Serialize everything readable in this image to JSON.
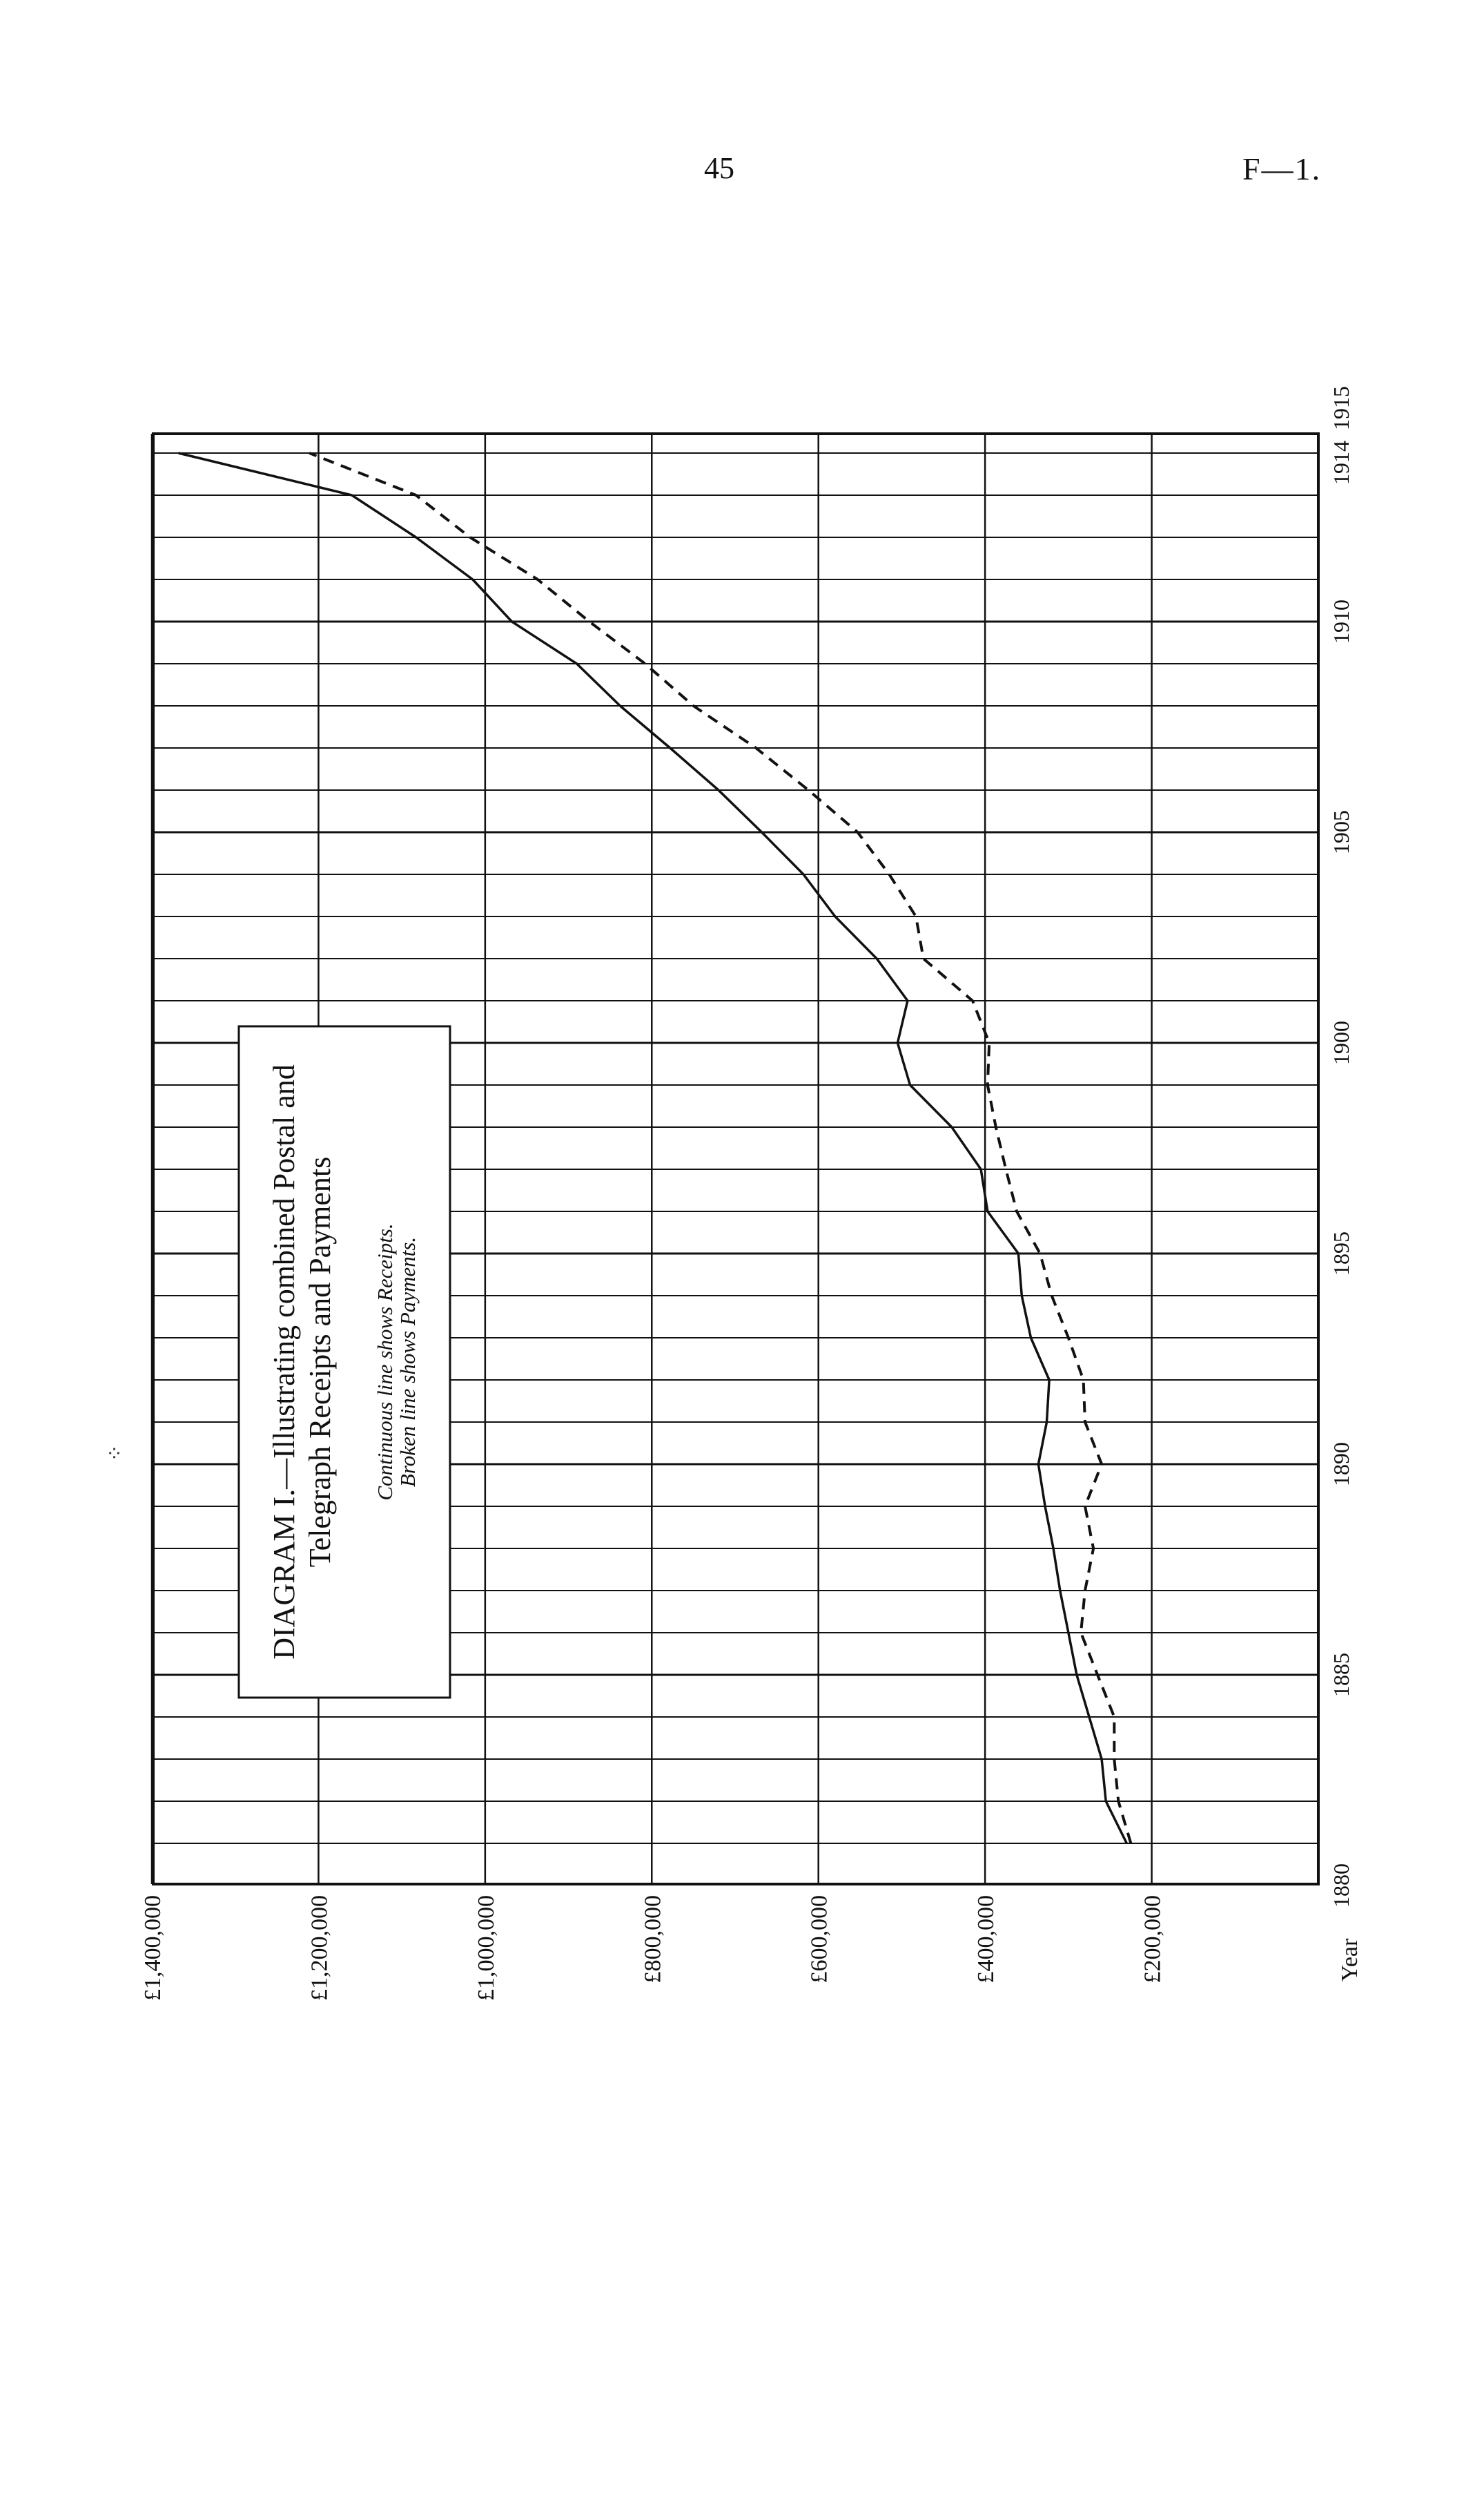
{
  "page": {
    "page_number": "45",
    "doc_ref": "F—1."
  },
  "chart_data": {
    "type": "line",
    "orientation": "rotated 90° (years run along the long axis, money along the short axis)",
    "title": "Diagram I.—Illustrating combined Postal and Telegraph Receipts and Payments",
    "title_lines": [
      "DIAGRAM I.—Illustrating combined Postal and",
      "Telegraph Receipts and Payments"
    ],
    "legend": [
      "Continuous line shows Receipts.",
      "Broken line shows Payments."
    ],
    "legend_placement": "inset box, upper-middle of plot",
    "xlabel": "Year",
    "x_ticks": [
      1880,
      1885,
      1890,
      1895,
      1900,
      1905,
      1910,
      1914,
      1915
    ],
    "x_tick_labels": [
      "1880",
      "1885",
      "1890",
      "1895",
      "1900",
      "1905",
      "1910",
      "1914",
      "1915"
    ],
    "xlim": [
      1880,
      1915
    ],
    "y_ticks": [
      200000,
      400000,
      600000,
      800000,
      1000000,
      1200000,
      1400000
    ],
    "y_tick_labels": [
      "£200,000",
      "£400,000",
      "£600,000",
      "£800,000",
      "£1,000,000",
      "£1,200,000",
      "£1,400,000"
    ],
    "ylim": [
      0,
      1400000
    ],
    "grid": true,
    "series": [
      {
        "name": "Receipts",
        "style": "solid",
        "x": [
          1881,
          1882,
          1883,
          1884,
          1885,
          1886,
          1887,
          1888,
          1889,
          1890,
          1891,
          1892,
          1893,
          1894,
          1895,
          1896,
          1897,
          1898,
          1899,
          1900,
          1901,
          1902,
          1903,
          1904,
          1905,
          1906,
          1907,
          1908,
          1909,
          1910,
          1911,
          1912,
          1913,
          1914
        ],
        "values": [
          230000,
          255000,
          260000,
          275000,
          290000,
          300000,
          310000,
          318000,
          328000,
          336000,
          326000,
          323000,
          345000,
          356000,
          360000,
          397000,
          405000,
          440000,
          490000,
          505000,
          493000,
          530000,
          580000,
          618000,
          668000,
          720000,
          778000,
          838000,
          890000,
          968000,
          1015000,
          1083000,
          1160000,
          1368000
        ]
      },
      {
        "name": "Payments",
        "style": "dashed",
        "x": [
          1881,
          1882,
          1883,
          1884,
          1885,
          1886,
          1887,
          1888,
          1889,
          1890,
          1891,
          1892,
          1893,
          1894,
          1895,
          1896,
          1897,
          1898,
          1899,
          1900,
          1901,
          1902,
          1903,
          1904,
          1905,
          1906,
          1907,
          1908,
          1909,
          1910,
          1911,
          1912,
          1913,
          1914
        ],
        "values": [
          225000,
          240000,
          245000,
          245000,
          265000,
          285000,
          280000,
          270000,
          280000,
          260000,
          280000,
          282000,
          300000,
          320000,
          334000,
          362000,
          375000,
          387000,
          397000,
          395000,
          415000,
          474000,
          483000,
          515000,
          553000,
          612000,
          675000,
          750000,
          808000,
          875000,
          937000,
          1018000,
          1083000,
          1211000
        ]
      }
    ]
  }
}
